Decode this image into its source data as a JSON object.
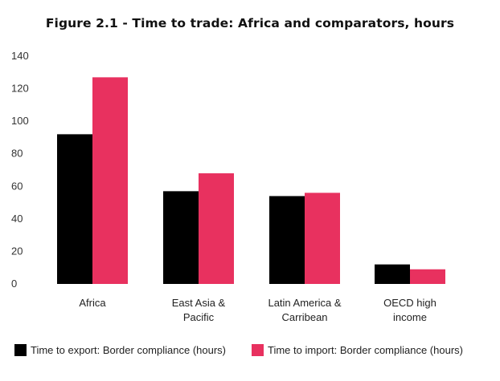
{
  "chart_data": {
    "type": "bar",
    "title": "Figure 2.1 - Time to trade: Africa and comparators, hours",
    "categories": [
      [
        "Africa"
      ],
      [
        "East Asia &",
        "Pacific"
      ],
      [
        "Latin America &",
        "Carribean"
      ],
      [
        "OECD high",
        "income"
      ]
    ],
    "series": [
      {
        "name": "Time to export: Border compliance (hours)",
        "color": "#000000",
        "values": [
          92,
          57,
          54,
          12
        ]
      },
      {
        "name": "Time to import: Border compliance (hours)",
        "color": "#e8315f",
        "values": [
          127,
          68,
          56,
          9
        ]
      }
    ],
    "ylim": [
      0,
      140
    ],
    "yticks": [
      0,
      20,
      40,
      60,
      80,
      100,
      120,
      140
    ],
    "xlabel": "",
    "ylabel": "",
    "legend_position": "bottom",
    "grid": false
  }
}
